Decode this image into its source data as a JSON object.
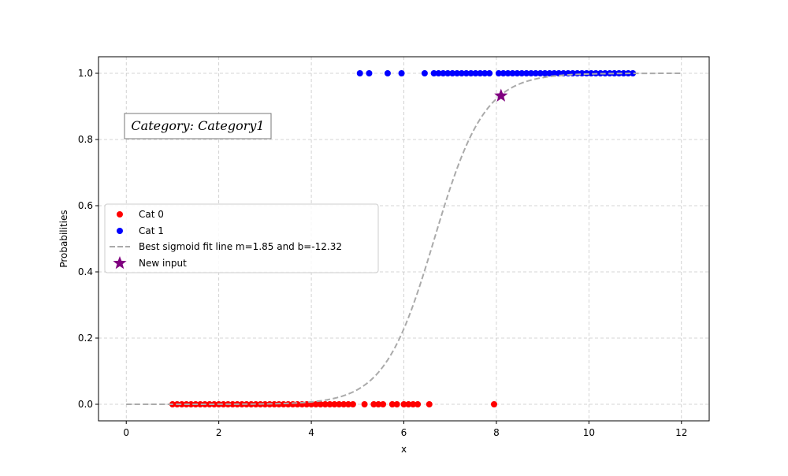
{
  "chart_data": {
    "type": "scatter",
    "xlabel": "x",
    "ylabel": "Probabilities",
    "xlim": [
      -0.6,
      12.6
    ],
    "ylim": [
      -0.05,
      1.05
    ],
    "xticks": [
      0,
      2,
      4,
      6,
      8,
      10,
      12
    ],
    "yticks": [
      0.0,
      0.2,
      0.4,
      0.6,
      0.8,
      1.0
    ],
    "xtick_labels": [
      "0",
      "2",
      "4",
      "6",
      "8",
      "10",
      "12"
    ],
    "ytick_labels": [
      "0.0",
      "0.2",
      "0.4",
      "0.6",
      "0.8",
      "1.0"
    ],
    "grid": true,
    "legend_position": "center-left",
    "annotation": "Category: Category1",
    "series": [
      {
        "name": "Cat 0",
        "kind": "scatter",
        "color": "#ff0000",
        "marker": "circle",
        "x": [
          1.0,
          1.1,
          1.2,
          1.3,
          1.4,
          1.5,
          1.6,
          1.7,
          1.8,
          1.9,
          2.0,
          2.1,
          2.2,
          2.3,
          2.4,
          2.5,
          2.6,
          2.7,
          2.8,
          2.9,
          3.0,
          3.1,
          3.2,
          3.3,
          3.4,
          3.5,
          3.6,
          3.7,
          3.8,
          3.9,
          4.0,
          4.1,
          4.2,
          4.3,
          4.4,
          4.5,
          4.6,
          4.7,
          4.8,
          4.9,
          5.15,
          5.35,
          5.45,
          5.55,
          5.75,
          5.85,
          6.0,
          6.1,
          6.2,
          6.3,
          6.55,
          7.95
        ],
        "y": [
          0,
          0,
          0,
          0,
          0,
          0,
          0,
          0,
          0,
          0,
          0,
          0,
          0,
          0,
          0,
          0,
          0,
          0,
          0,
          0,
          0,
          0,
          0,
          0,
          0,
          0,
          0,
          0,
          0,
          0,
          0,
          0,
          0,
          0,
          0,
          0,
          0,
          0,
          0,
          0,
          0,
          0,
          0,
          0,
          0,
          0,
          0,
          0,
          0,
          0,
          0,
          0
        ]
      },
      {
        "name": "Cat 1",
        "kind": "scatter",
        "color": "#0000ff",
        "marker": "circle",
        "x": [
          5.05,
          5.25,
          5.65,
          5.95,
          6.45,
          6.65,
          6.75,
          6.85,
          6.95,
          7.05,
          7.15,
          7.25,
          7.35,
          7.45,
          7.55,
          7.65,
          7.75,
          7.85,
          8.05,
          8.15,
          8.25,
          8.35,
          8.45,
          8.55,
          8.65,
          8.75,
          8.85,
          8.95,
          9.05,
          9.15,
          9.25,
          9.35,
          9.45,
          9.55,
          9.65,
          9.75,
          9.85,
          9.95,
          10.05,
          10.15,
          10.25,
          10.35,
          10.45,
          10.55,
          10.65,
          10.75,
          10.85,
          10.95
        ],
        "y": [
          1,
          1,
          1,
          1,
          1,
          1,
          1,
          1,
          1,
          1,
          1,
          1,
          1,
          1,
          1,
          1,
          1,
          1,
          1,
          1,
          1,
          1,
          1,
          1,
          1,
          1,
          1,
          1,
          1,
          1,
          1,
          1,
          1,
          1,
          1,
          1,
          1,
          1,
          1,
          1,
          1,
          1,
          1,
          1,
          1,
          1,
          1,
          1
        ]
      },
      {
        "name": "Best sigmoid fit line m=1.85 and b=-12.32",
        "kind": "line",
        "color": "#aaaaaa",
        "style": "dashed",
        "m": 1.85,
        "b": -12.32,
        "x_range": [
          0,
          12
        ]
      },
      {
        "name": "New input",
        "kind": "scatter",
        "color": "#800080",
        "marker": "star",
        "x": [
          8.1
        ],
        "y": [
          0.932
        ]
      }
    ]
  }
}
